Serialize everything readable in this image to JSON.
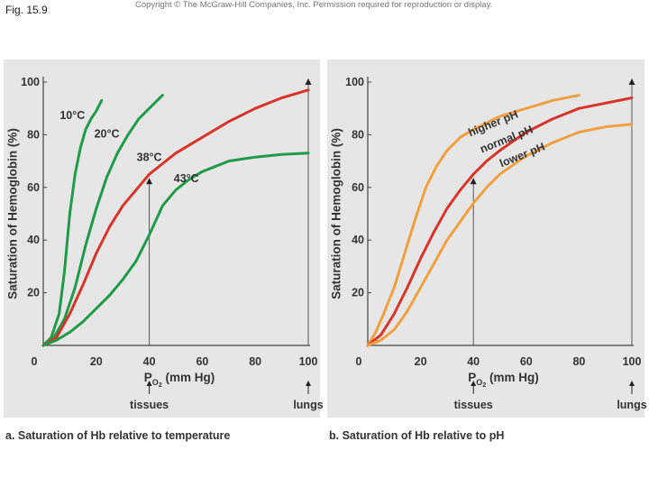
{
  "figure_label": "Fig. 15.9",
  "copyright": "Copyright © The McGraw-Hill Companies, Inc. Permission required for reproduction or display.",
  "colors": {
    "panel_bg": "#e6e6e6",
    "green": "#1f9a4a",
    "red": "#d7352b",
    "orange": "#f0a040",
    "axis": "#444444"
  },
  "chart_data": [
    {
      "type": "line",
      "panel": "a",
      "caption": "a. Saturation of Hb relative to temperature",
      "xlabel_main": "P",
      "xlabel_sub": "O",
      "xlabel_subsub": "2",
      "xlabel_tail": " (mm Hg)",
      "ylabel": "Saturation of Hemoglobin (%)",
      "xlim": [
        0,
        100
      ],
      "ylim": [
        0,
        100
      ],
      "xticks": [
        "0",
        "20",
        "40",
        "60",
        "80",
        "100"
      ],
      "yticks": [
        "20",
        "40",
        "60",
        "80",
        "100"
      ],
      "markers": [
        {
          "x": 40,
          "label": "tissues"
        },
        {
          "x": 100,
          "label": "lungs"
        }
      ],
      "series": [
        {
          "name": "10°C",
          "color_key": "green",
          "label_pos": {
            "x": 11,
            "y": 86
          },
          "points": [
            [
              0,
              0
            ],
            [
              3,
              3
            ],
            [
              6,
              12
            ],
            [
              8,
              28
            ],
            [
              10,
              50
            ],
            [
              12,
              65
            ],
            [
              14,
              75
            ],
            [
              16,
              82
            ],
            [
              18,
              86
            ],
            [
              20,
              89
            ],
            [
              22,
              93
            ]
          ]
        },
        {
          "name": "20°C",
          "color_key": "green",
          "label_pos": {
            "x": 24,
            "y": 79
          },
          "points": [
            [
              0,
              0
            ],
            [
              4,
              3
            ],
            [
              8,
              10
            ],
            [
              12,
              22
            ],
            [
              16,
              38
            ],
            [
              20,
              52
            ],
            [
              24,
              64
            ],
            [
              28,
              73
            ],
            [
              32,
              80
            ],
            [
              36,
              86
            ],
            [
              40,
              90
            ],
            [
              45,
              95
            ]
          ]
        },
        {
          "name": "38°C",
          "color_key": "red",
          "label_pos": {
            "x": 40,
            "y": 70
          },
          "points": [
            [
              0,
              0
            ],
            [
              5,
              3
            ],
            [
              10,
              12
            ],
            [
              15,
              23
            ],
            [
              20,
              35
            ],
            [
              25,
              45
            ],
            [
              30,
              53
            ],
            [
              35,
              59
            ],
            [
              40,
              65
            ],
            [
              45,
              69
            ],
            [
              50,
              73
            ],
            [
              60,
              79
            ],
            [
              70,
              85
            ],
            [
              80,
              90
            ],
            [
              90,
              94
            ],
            [
              100,
              97
            ]
          ]
        },
        {
          "name": "43°C",
          "color_key": "green",
          "label_pos": {
            "x": 54,
            "y": 62
          },
          "points": [
            [
              0,
              0
            ],
            [
              5,
              2
            ],
            [
              10,
              5
            ],
            [
              15,
              9
            ],
            [
              20,
              14
            ],
            [
              25,
              19
            ],
            [
              30,
              25
            ],
            [
              35,
              32
            ],
            [
              40,
              42
            ],
            [
              45,
              53
            ],
            [
              50,
              59
            ],
            [
              55,
              63
            ],
            [
              60,
              66
            ],
            [
              70,
              70
            ],
            [
              80,
              71.5
            ],
            [
              90,
              72.5
            ],
            [
              100,
              73
            ]
          ]
        }
      ]
    },
    {
      "type": "line",
      "panel": "b",
      "caption": "b. Saturation of Hb relative to pH",
      "xlabel_main": "P",
      "xlabel_sub": "O",
      "xlabel_subsub": "2",
      "xlabel_tail": " (mm Hg)",
      "ylabel": "Saturation of Hemoglobin (%)",
      "xlim": [
        0,
        100
      ],
      "ylim": [
        0,
        100
      ],
      "xticks": [
        "0",
        "20",
        "40",
        "60",
        "80",
        "100"
      ],
      "yticks": [
        "20",
        "40",
        "60",
        "80",
        "100"
      ],
      "markers": [
        {
          "x": 40,
          "label": "tissues"
        },
        {
          "x": 100,
          "label": "lungs"
        }
      ],
      "series": [
        {
          "name": "higher pH",
          "color_key": "orange",
          "label_pos": {
            "x": 48,
            "y": 83
          },
          "label_rotate": -22,
          "points": [
            [
              0,
              0
            ],
            [
              3,
              5
            ],
            [
              6,
              12
            ],
            [
              10,
              22
            ],
            [
              14,
              35
            ],
            [
              18,
              48
            ],
            [
              22,
              60
            ],
            [
              26,
              68
            ],
            [
              30,
              74
            ],
            [
              35,
              79
            ],
            [
              40,
              82
            ],
            [
              50,
              87
            ],
            [
              60,
              90
            ],
            [
              70,
              93
            ],
            [
              80,
              95
            ]
          ]
        },
        {
          "name": "normal pH",
          "color_key": "red",
          "label_pos": {
            "x": 53,
            "y": 77
          },
          "label_rotate": -22,
          "points": [
            [
              0,
              0
            ],
            [
              5,
              4
            ],
            [
              10,
              12
            ],
            [
              15,
              22
            ],
            [
              20,
              33
            ],
            [
              25,
              43
            ],
            [
              30,
              52
            ],
            [
              35,
              59
            ],
            [
              40,
              65
            ],
            [
              45,
              70
            ],
            [
              50,
              74
            ],
            [
              60,
              81
            ],
            [
              70,
              86
            ],
            [
              80,
              90
            ],
            [
              90,
              92
            ],
            [
              100,
              94
            ]
          ]
        },
        {
          "name": "lower pH",
          "color_key": "orange",
          "label_pos": {
            "x": 59,
            "y": 71
          },
          "label_rotate": -22,
          "points": [
            [
              0,
              0
            ],
            [
              5,
              2
            ],
            [
              10,
              6
            ],
            [
              15,
              13
            ],
            [
              20,
              22
            ],
            [
              25,
              31
            ],
            [
              30,
              40
            ],
            [
              35,
              47
            ],
            [
              40,
              54
            ],
            [
              45,
              60
            ],
            [
              50,
              65
            ],
            [
              60,
              72
            ],
            [
              70,
              77
            ],
            [
              80,
              81
            ],
            [
              90,
              83
            ],
            [
              100,
              84
            ]
          ]
        }
      ]
    }
  ]
}
